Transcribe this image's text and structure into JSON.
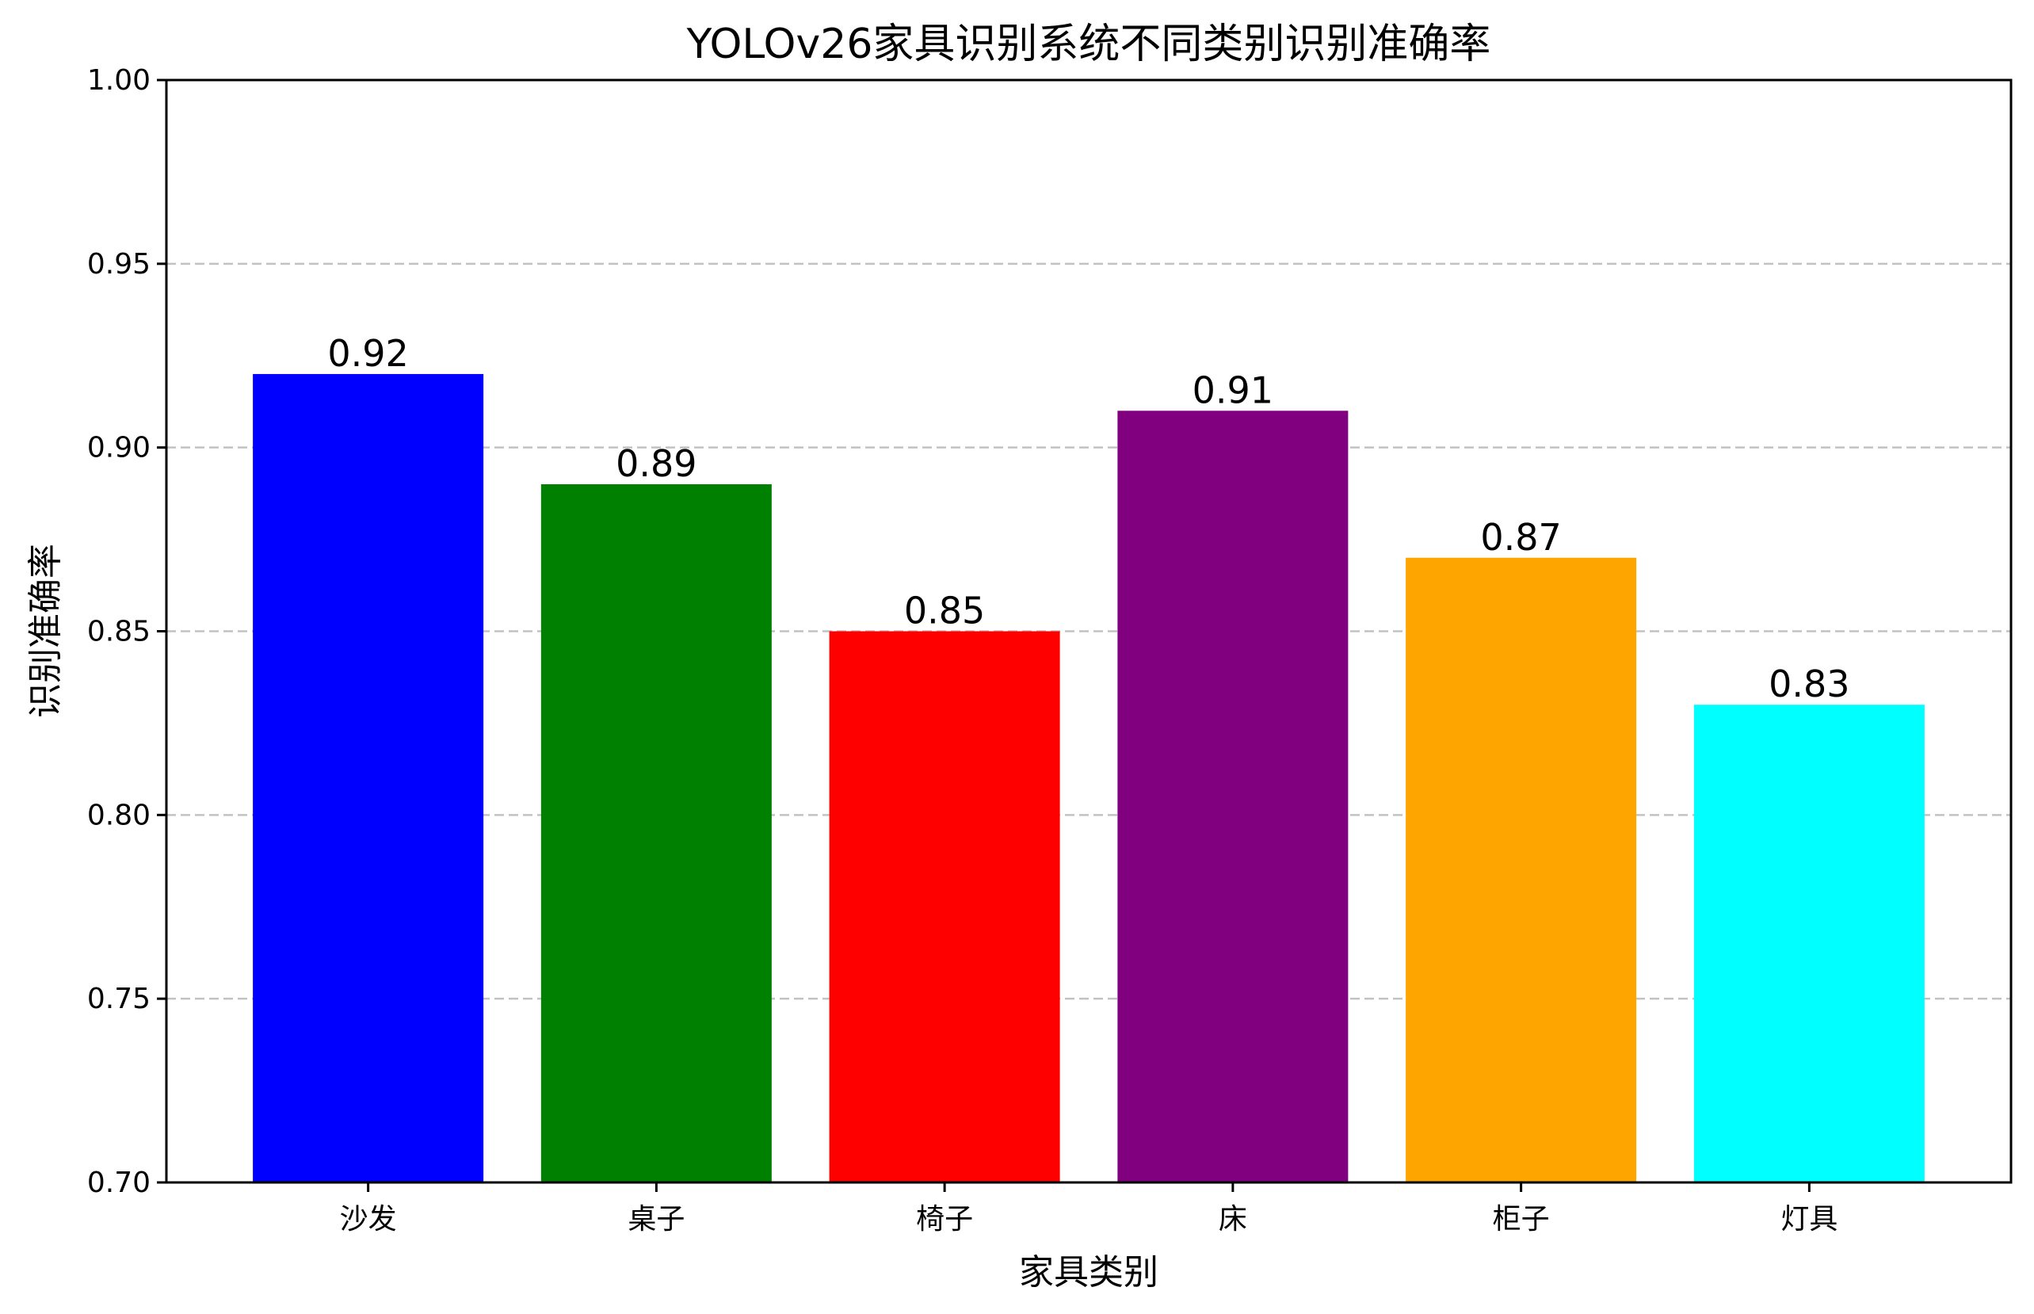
{
  "chart_data": {
    "type": "bar",
    "title": "YOLOv26家具识别系统不同类别识别准确率",
    "xlabel": "家具类别",
    "ylabel": "识别准确率",
    "categories": [
      "沙发",
      "桌子",
      "椅子",
      "床",
      "柜子",
      "灯具"
    ],
    "values": [
      0.92,
      0.89,
      0.85,
      0.91,
      0.87,
      0.83
    ],
    "value_labels": [
      "0.92",
      "0.89",
      "0.85",
      "0.91",
      "0.87",
      "0.83"
    ],
    "colors": [
      "#0000ff",
      "#008000",
      "#ff0000",
      "#800080",
      "#ffa500",
      "#00ffff"
    ],
    "ylim": [
      0.7,
      1.0
    ],
    "yticks": [
      0.7,
      0.75,
      0.8,
      0.85,
      0.9,
      0.95,
      1.0
    ],
    "ytick_labels": [
      "0.70",
      "0.75",
      "0.80",
      "0.85",
      "0.90",
      "0.95",
      "1.00"
    ],
    "grid": "y-dashed"
  }
}
